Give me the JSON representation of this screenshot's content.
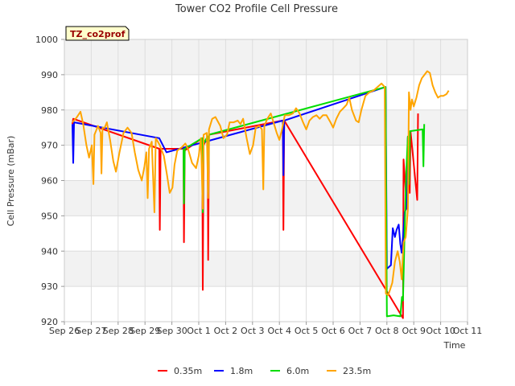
{
  "chart_data": {
    "type": "line",
    "title": "Tower CO2 Profile Cell Pressure",
    "xlabel": "Time",
    "ylabel": "Cell Pressure (mBar)",
    "site_label": "TZ_co2prof",
    "ylim": [
      920,
      1000
    ],
    "xlim": [
      0,
      15
    ],
    "yticks": [
      920,
      930,
      940,
      950,
      960,
      970,
      980,
      990,
      1000
    ],
    "xtick_labels": [
      "Sep 26",
      "Sep 27",
      "Sep 28",
      "Sep 29",
      "Sep 30",
      "Oct 1",
      "Oct 2",
      "Oct 3",
      "Oct 4",
      "Oct 5",
      "Oct 6",
      "Oct 7",
      "Oct 8",
      "Oct 9",
      "Oct 10",
      "Oct 11"
    ],
    "legend_position": "bottom-center",
    "grid": true,
    "series": [
      {
        "name": "0.35m",
        "color": "#ff0000",
        "points": [
          [
            0.3,
            976.0
          ],
          [
            0.33,
            977.5
          ],
          [
            3.53,
            969.0
          ],
          [
            3.55,
            946.0
          ],
          [
            3.58,
            969.0
          ],
          [
            4.43,
            969.0
          ],
          [
            4.45,
            942.5
          ],
          [
            4.48,
            968.5
          ],
          [
            5.13,
            972.0
          ],
          [
            5.15,
            929.0
          ],
          [
            5.18,
            970.0
          ],
          [
            5.33,
            972.5
          ],
          [
            5.35,
            937.5
          ],
          [
            5.38,
            973.0
          ],
          [
            8.13,
            977.0
          ],
          [
            8.15,
            946.0
          ],
          [
            8.18,
            977.0
          ],
          [
            12.6,
            921.0
          ],
          [
            12.62,
            966.0
          ],
          [
            12.75,
            952.0
          ],
          [
            12.78,
            972.0
          ],
          [
            12.85,
            956.5
          ],
          [
            12.88,
            974.0
          ],
          [
            13.13,
            954.5
          ],
          [
            13.16,
            979.0
          ]
        ]
      },
      {
        "name": "1.8m",
        "color": "#0000ff",
        "points": [
          [
            0.3,
            976.0
          ],
          [
            0.33,
            965.0
          ],
          [
            0.36,
            976.5
          ],
          [
            3.53,
            972.0
          ],
          [
            3.8,
            968.0
          ],
          [
            8.13,
            977.0
          ],
          [
            8.15,
            961.5
          ],
          [
            8.18,
            977.0
          ],
          [
            11.95,
            986.5
          ],
          [
            12.0,
            935.0
          ],
          [
            12.15,
            936.0
          ],
          [
            12.22,
            946.5
          ],
          [
            12.3,
            944.0
          ],
          [
            12.36,
            946.0
          ],
          [
            12.44,
            947.5
          ],
          [
            12.5,
            942.0
          ],
          [
            12.55,
            939.5
          ],
          [
            12.6,
            944.0
          ],
          [
            12.66,
            951.0
          ],
          [
            12.72,
            952.0
          ],
          [
            12.78,
            972.5
          ],
          [
            12.83,
            972.0
          ]
        ]
      },
      {
        "name": "6.0m",
        "color": "#00dd00",
        "points": [
          [
            4.43,
            969.0
          ],
          [
            4.45,
            953.5
          ],
          [
            4.48,
            969.0
          ],
          [
            5.13,
            972.0
          ],
          [
            5.15,
            951.0
          ],
          [
            5.18,
            970.5
          ],
          [
            5.33,
            972.5
          ],
          [
            5.35,
            956.5
          ],
          [
            5.38,
            973.0
          ],
          [
            11.95,
            986.5
          ],
          [
            12.0,
            921.5
          ],
          [
            12.25,
            921.8
          ],
          [
            12.5,
            921.5
          ],
          [
            12.56,
            927.0
          ],
          [
            12.6,
            926.0
          ],
          [
            12.66,
            945.0
          ],
          [
            12.72,
            962.0
          ],
          [
            12.78,
            972.5
          ],
          [
            12.82,
            959.0
          ],
          [
            12.86,
            974.0
          ],
          [
            13.33,
            974.5
          ],
          [
            13.36,
            964.0
          ],
          [
            13.39,
            976.0
          ]
        ]
      },
      {
        "name": "23.5m",
        "color": "#ffa500",
        "points": [
          [
            0.3,
            976.5
          ],
          [
            0.45,
            977.8
          ],
          [
            0.6,
            979.5
          ],
          [
            0.7,
            976.0
          ],
          [
            0.82,
            970.0
          ],
          [
            0.92,
            966.5
          ],
          [
            1.02,
            970.0
          ],
          [
            1.08,
            959.0
          ],
          [
            1.12,
            973.0
          ],
          [
            1.25,
            975.5
          ],
          [
            1.35,
            973.5
          ],
          [
            1.38,
            962.0
          ],
          [
            1.42,
            975.0
          ],
          [
            1.5,
            975.0
          ],
          [
            1.58,
            976.5
          ],
          [
            1.7,
            971.5
          ],
          [
            1.82,
            965.5
          ],
          [
            1.92,
            962.5
          ],
          [
            2.05,
            968.0
          ],
          [
            2.2,
            973.5
          ],
          [
            2.35,
            975.0
          ],
          [
            2.5,
            973.5
          ],
          [
            2.62,
            968.0
          ],
          [
            2.75,
            963.0
          ],
          [
            2.88,
            960.0
          ],
          [
            2.98,
            964.0
          ],
          [
            3.05,
            968.0
          ],
          [
            3.1,
            955.0
          ],
          [
            3.15,
            969.0
          ],
          [
            3.25,
            971.0
          ],
          [
            3.35,
            951.0
          ],
          [
            3.4,
            972.0
          ],
          [
            3.55,
            970.0
          ],
          [
            3.7,
            967.0
          ],
          [
            3.82,
            961.5
          ],
          [
            3.92,
            956.5
          ],
          [
            4.02,
            958.0
          ],
          [
            4.1,
            964.5
          ],
          [
            4.2,
            968.5
          ],
          [
            4.38,
            969.5
          ],
          [
            4.5,
            970.5
          ],
          [
            4.6,
            969.0
          ],
          [
            4.75,
            965.0
          ],
          [
            4.9,
            963.5
          ],
          [
            5.0,
            967.0
          ],
          [
            5.08,
            972.0
          ],
          [
            5.15,
            952.0
          ],
          [
            5.18,
            973.0
          ],
          [
            5.3,
            973.5
          ],
          [
            5.35,
            955.0
          ],
          [
            5.38,
            974.5
          ],
          [
            5.5,
            977.5
          ],
          [
            5.62,
            978.0
          ],
          [
            5.8,
            975.5
          ],
          [
            5.92,
            972.0
          ],
          [
            6.05,
            973.0
          ],
          [
            6.15,
            976.5
          ],
          [
            6.3,
            976.5
          ],
          [
            6.45,
            977.0
          ],
          [
            6.55,
            976.0
          ],
          [
            6.65,
            977.5
          ],
          [
            6.78,
            972.0
          ],
          [
            6.9,
            967.5
          ],
          [
            7.02,
            970.0
          ],
          [
            7.12,
            975.0
          ],
          [
            7.25,
            975.5
          ],
          [
            7.35,
            974.5
          ],
          [
            7.4,
            957.5
          ],
          [
            7.44,
            975.5
          ],
          [
            7.55,
            977.5
          ],
          [
            7.68,
            979.0
          ],
          [
            7.78,
            976.5
          ],
          [
            7.9,
            973.5
          ],
          [
            8.0,
            971.5
          ],
          [
            8.1,
            974.5
          ],
          [
            8.2,
            978.5
          ],
          [
            8.35,
            978.5
          ],
          [
            8.5,
            979.0
          ],
          [
            8.62,
            980.5
          ],
          [
            8.75,
            979.0
          ],
          [
            8.88,
            976.5
          ],
          [
            9.0,
            974.5
          ],
          [
            9.12,
            977.0
          ],
          [
            9.25,
            978.0
          ],
          [
            9.38,
            978.5
          ],
          [
            9.5,
            977.5
          ],
          [
            9.62,
            978.5
          ],
          [
            9.75,
            978.5
          ],
          [
            9.9,
            976.5
          ],
          [
            10.0,
            975.0
          ],
          [
            10.12,
            977.5
          ],
          [
            10.25,
            979.5
          ],
          [
            10.38,
            980.5
          ],
          [
            10.5,
            981.5
          ],
          [
            10.6,
            983.5
          ],
          [
            10.7,
            980.0
          ],
          [
            10.85,
            977.0
          ],
          [
            10.95,
            976.5
          ],
          [
            11.05,
            980.0
          ],
          [
            11.2,
            984.0
          ],
          [
            11.35,
            985.0
          ],
          [
            11.5,
            985.5
          ],
          [
            11.65,
            986.5
          ],
          [
            11.8,
            987.5
          ],
          [
            11.92,
            986.5
          ],
          [
            11.96,
            928.0
          ],
          [
            12.05,
            927.5
          ],
          [
            12.2,
            931.0
          ],
          [
            12.3,
            937.0
          ],
          [
            12.4,
            940.0
          ],
          [
            12.48,
            937.0
          ],
          [
            12.55,
            932.0
          ],
          [
            12.62,
            942.5
          ],
          [
            12.7,
            944.0
          ],
          [
            12.78,
            952.0
          ],
          [
            12.82,
            985.0
          ],
          [
            12.88,
            980.0
          ],
          [
            12.93,
            983.0
          ],
          [
            13.0,
            981.0
          ],
          [
            13.1,
            983.5
          ],
          [
            13.2,
            987.0
          ],
          [
            13.3,
            989.0
          ],
          [
            13.4,
            990.0
          ],
          [
            13.5,
            991.0
          ],
          [
            13.6,
            990.5
          ],
          [
            13.7,
            987.0
          ],
          [
            13.8,
            985.0
          ],
          [
            13.9,
            983.5
          ],
          [
            14.0,
            984.0
          ],
          [
            14.1,
            984.0
          ],
          [
            14.22,
            984.5
          ],
          [
            14.3,
            985.5
          ]
        ]
      }
    ]
  }
}
